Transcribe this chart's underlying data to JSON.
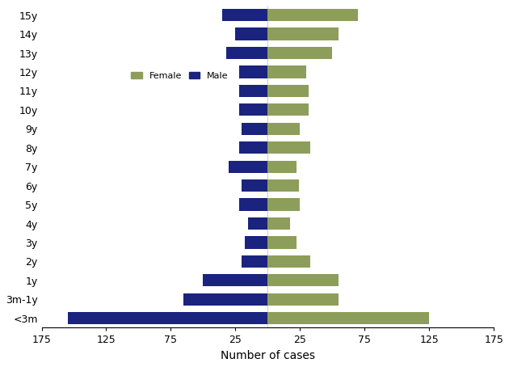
{
  "age_groups": [
    "15y",
    "14y",
    "13y",
    "12y",
    "11y",
    "10y",
    "9y",
    "8y",
    "7y",
    "6y",
    "5y",
    "4y",
    "3y",
    "2y",
    "1y",
    "3m-1y",
    "<3m"
  ],
  "male_values": [
    35,
    25,
    32,
    22,
    22,
    22,
    20,
    22,
    30,
    20,
    22,
    15,
    18,
    20,
    50,
    65,
    155
  ],
  "female_values": [
    70,
    55,
    50,
    30,
    32,
    32,
    25,
    33,
    22,
    24,
    25,
    17,
    22,
    33,
    55,
    55,
    125
  ],
  "male_color": "#1a237e",
  "female_color": "#8d9e5a",
  "xlabel": "Number of cases",
  "xlim": 175,
  "legend_female_label": "Female",
  "legend_male_label": "Male",
  "background_color": "#ffffff",
  "bar_height": 0.65
}
